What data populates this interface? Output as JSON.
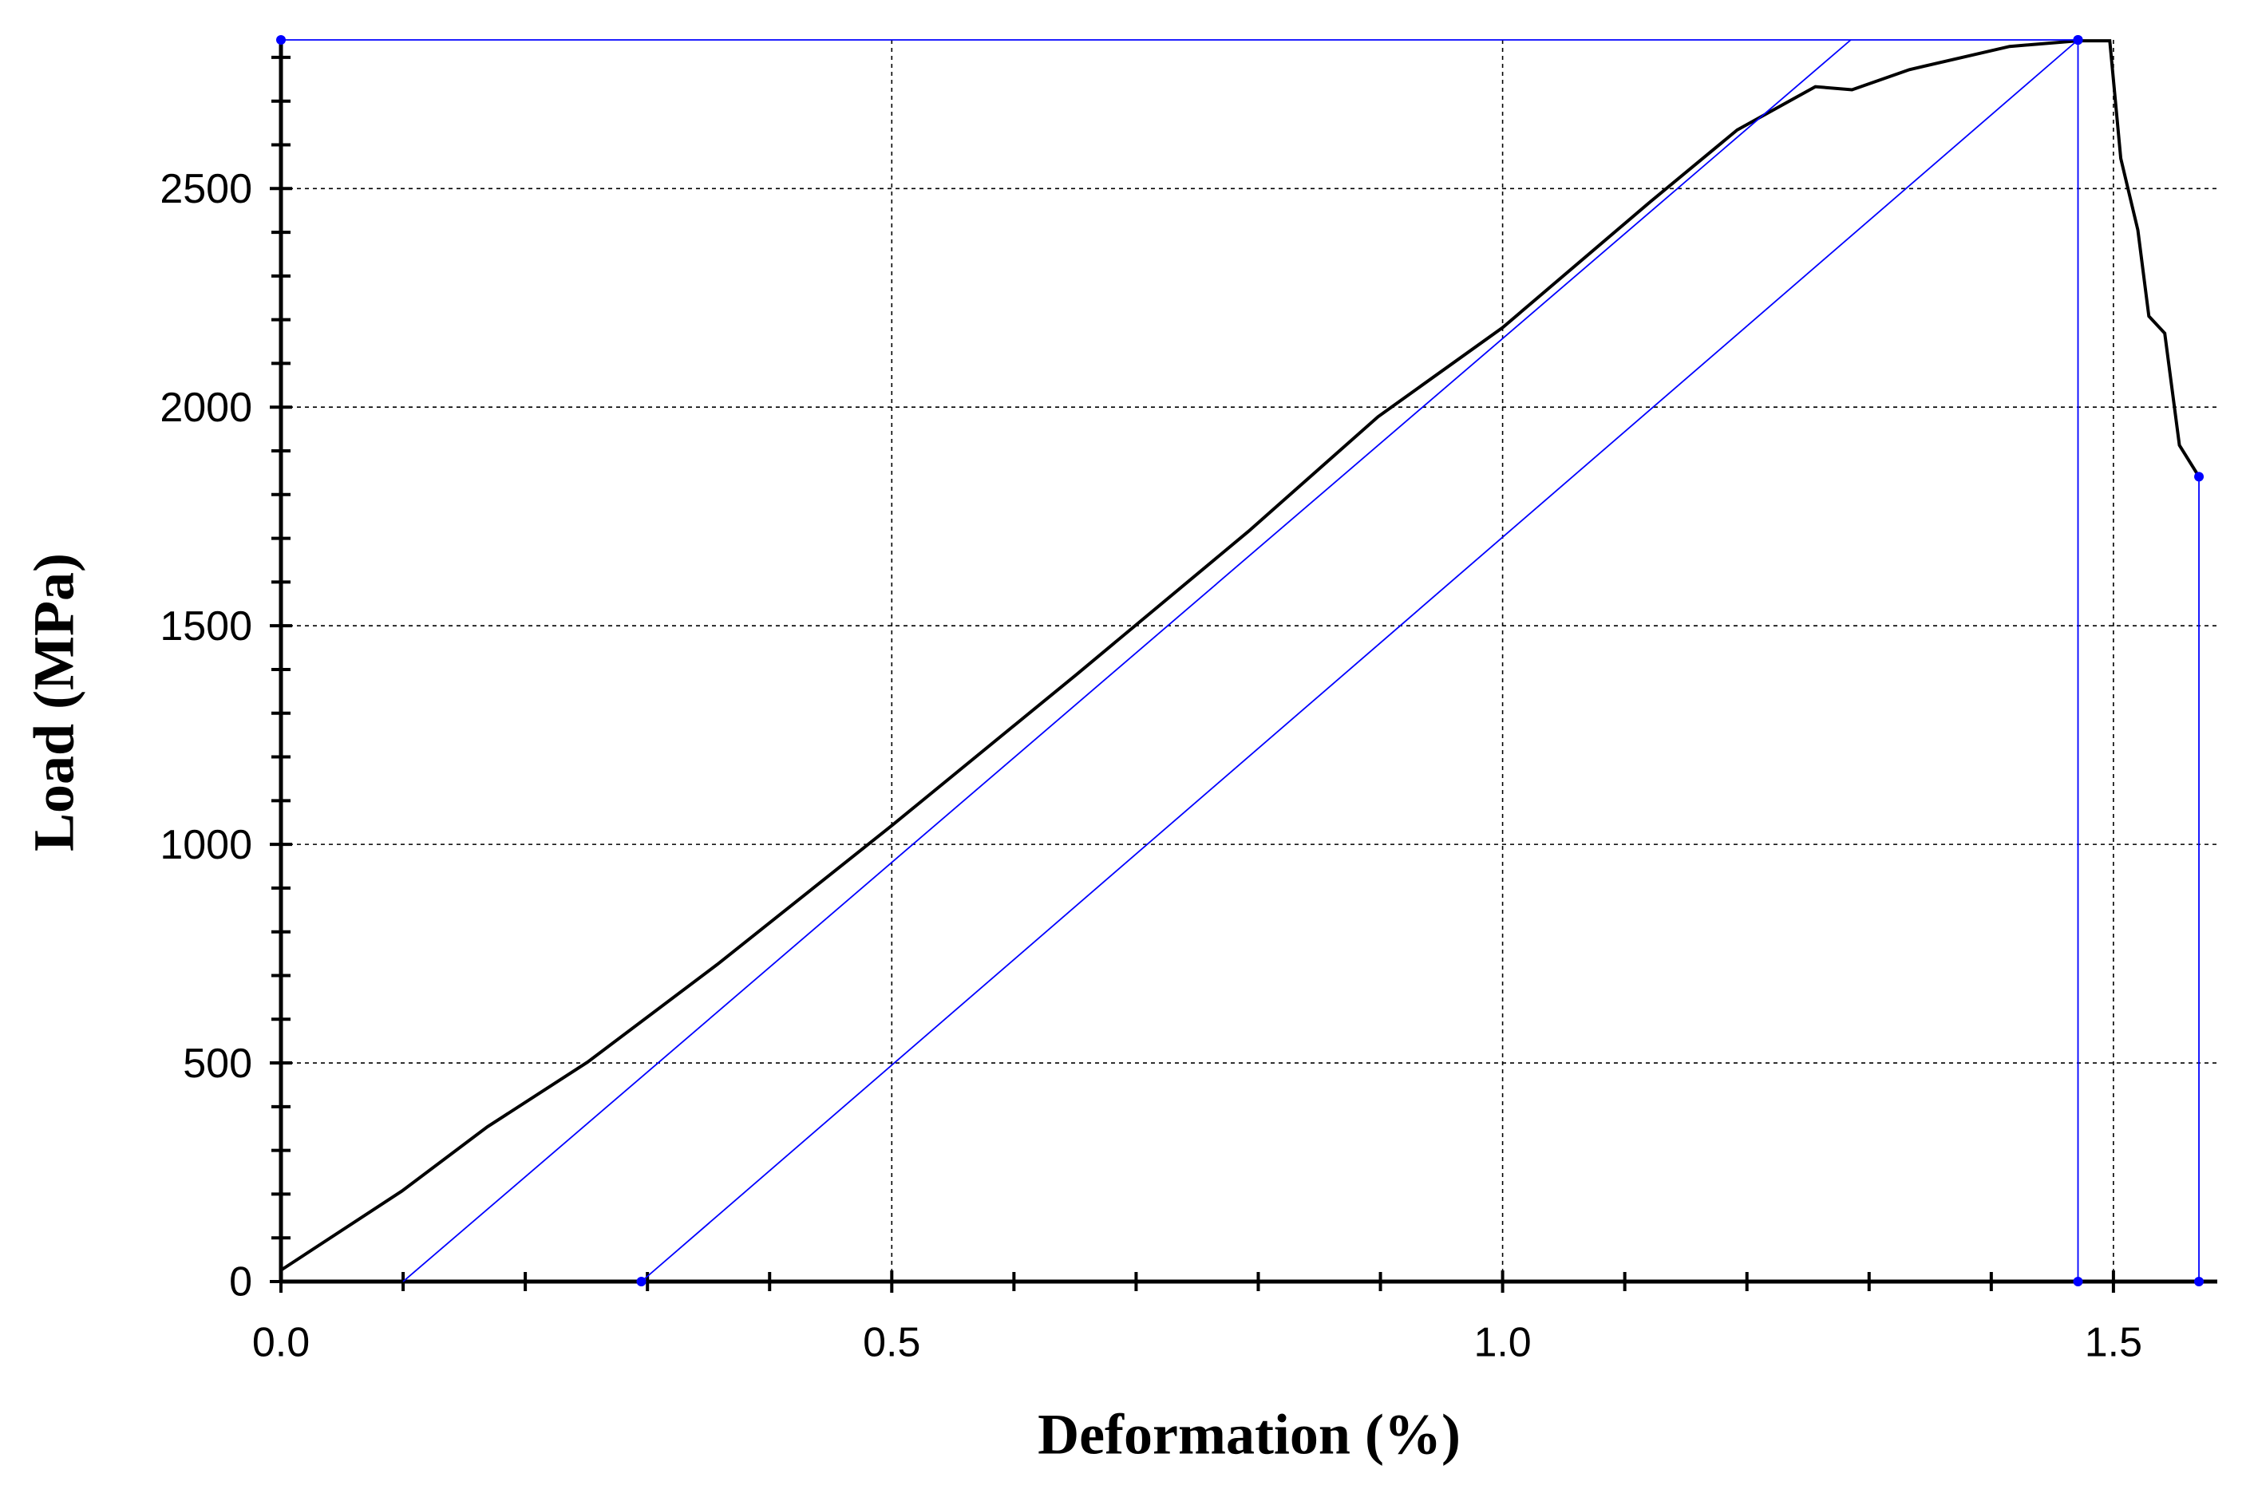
{
  "chart_data": {
    "type": "line",
    "x_label": "Deformation (%)",
    "y_label": "Load (MPa)",
    "xlim": [
      0,
      1.585
    ],
    "ylim": [
      0,
      2840
    ],
    "xticks": [
      {
        "value": 0,
        "label": "0.0"
      },
      0.5,
      {
        "value": 1,
        "label": "1.0"
      },
      1.5
    ],
    "yticks": [
      0,
      500,
      1000,
      1500,
      2000,
      2500
    ],
    "xminorticks": [
      0.1,
      0.2,
      0.3,
      0.4,
      0.6,
      0.7,
      0.8,
      0.9,
      1.1,
      1.2,
      1.3,
      1.4
    ],
    "yminorticks": [
      100,
      200,
      300,
      400,
      600,
      700,
      800,
      900,
      1100,
      1200,
      1300,
      1400,
      1600,
      1700,
      1800,
      1900,
      2100,
      2200,
      2300,
      2400,
      2600,
      2700,
      2800
    ],
    "grid": true,
    "series": [
      {
        "color": "#000000",
        "markers": false,
        "x": [
          0,
          0.099,
          0.169,
          0.251,
          0.357,
          0.5,
          0.651,
          0.792,
          0.898,
          1.0,
          1.121,
          1.192,
          1.256,
          1.286,
          1.333,
          1.415,
          1.471,
          1.497,
          1.506,
          1.52,
          1.529,
          1.542,
          1.554,
          1.57
        ],
        "values": [
          26,
          207,
          354,
          502,
          725,
          1043,
          1388,
          1716,
          1978,
          2182,
          2470,
          2634,
          2733,
          2726,
          2772,
          2825,
          2838,
          2838,
          2569,
          2405,
          2208,
          2169,
          1913,
          1841
        ]
      },
      {
        "color": "#0000ff",
        "markers": true,
        "x": [
          0,
          1.471
        ],
        "values": [
          2840,
          2840
        ]
      },
      {
        "color": "#0000ff",
        "markers": true,
        "x": [
          1.471,
          1.471
        ],
        "values": [
          0,
          2840
        ]
      },
      {
        "color": "#0000ff",
        "markers": true,
        "x": [
          1.57,
          1.57
        ],
        "values": [
          0,
          1841
        ]
      },
      {
        "color": "#0000ff",
        "markers": false,
        "x": [
          0.1,
          1.285
        ],
        "values": [
          0,
          2840
        ]
      },
      {
        "color": "#0000ff",
        "markers": true,
        "x": [
          0.295,
          1.471
        ],
        "values": [
          0,
          2840
        ]
      }
    ]
  }
}
